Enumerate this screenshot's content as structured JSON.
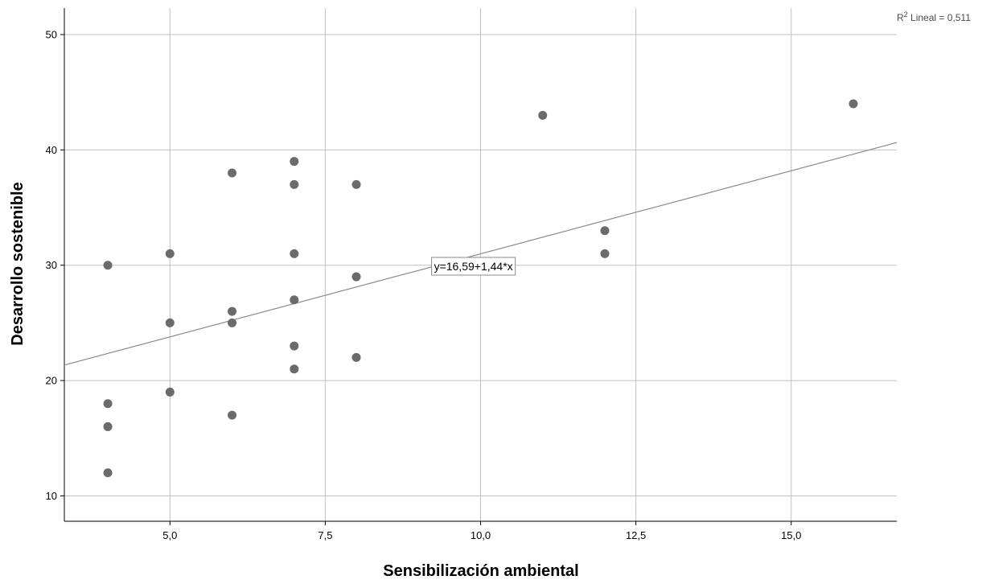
{
  "chart_data": {
    "type": "scatter",
    "title": "",
    "xlabel": "Sensibilización ambiental",
    "ylabel": "Desarrollo sostenible",
    "xlim": [
      3.3,
      16.7
    ],
    "ylim": [
      7.8,
      52.3
    ],
    "x_ticks": [
      5,
      7.5,
      10,
      12.5,
      15
    ],
    "x_tick_labels": [
      "5,0",
      "7,5",
      "10,0",
      "12,5",
      "15,0"
    ],
    "y_ticks": [
      10,
      20,
      30,
      40,
      50
    ],
    "y_tick_labels": [
      "10",
      "20",
      "30",
      "40",
      "50"
    ],
    "grid": true,
    "marker_color": "#6b6b6b",
    "line_color": "#8a8a8a",
    "grid_color": "#c0c0c0",
    "points": [
      {
        "x": 4,
        "y": 30
      },
      {
        "x": 4,
        "y": 18
      },
      {
        "x": 4,
        "y": 16
      },
      {
        "x": 4,
        "y": 12
      },
      {
        "x": 5,
        "y": 31
      },
      {
        "x": 5,
        "y": 25
      },
      {
        "x": 5,
        "y": 19
      },
      {
        "x": 6,
        "y": 38
      },
      {
        "x": 6,
        "y": 26
      },
      {
        "x": 6,
        "y": 25
      },
      {
        "x": 6,
        "y": 17
      },
      {
        "x": 7,
        "y": 39
      },
      {
        "x": 7,
        "y": 37
      },
      {
        "x": 7,
        "y": 31
      },
      {
        "x": 7,
        "y": 27
      },
      {
        "x": 7,
        "y": 23
      },
      {
        "x": 7,
        "y": 21
      },
      {
        "x": 8,
        "y": 37
      },
      {
        "x": 8,
        "y": 29
      },
      {
        "x": 8,
        "y": 22
      },
      {
        "x": 11,
        "y": 43
      },
      {
        "x": 12,
        "y": 33
      },
      {
        "x": 12,
        "y": 31
      },
      {
        "x": 16,
        "y": 44
      }
    ],
    "fit_line": {
      "intercept": 16.59,
      "slope": 1.44,
      "label": "y=16,59+1,44*x"
    },
    "r2_label": {
      "prefix": "R",
      "superscript": "2",
      "suffix": " Lineal = 0,511"
    }
  }
}
